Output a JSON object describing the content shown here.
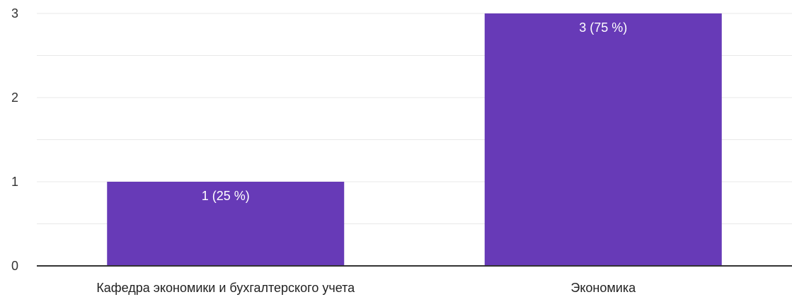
{
  "chart_data": {
    "type": "bar",
    "categories": [
      "Кафедра экономики и бухгалтерского учета",
      "Экономика"
    ],
    "values": [
      1,
      3
    ],
    "data_labels": [
      "1 (25 %)",
      "3 (75 %)"
    ],
    "title": "",
    "xlabel": "",
    "ylabel": "",
    "ylim": [
      0,
      3
    ],
    "y_ticks": [
      "0",
      "1",
      "2",
      "3"
    ],
    "grid": true,
    "minor_grid": true,
    "legend": "none",
    "bar_color": "#673ab7",
    "grid_color": "#e8e8e8",
    "axis_color": "#333333"
  }
}
